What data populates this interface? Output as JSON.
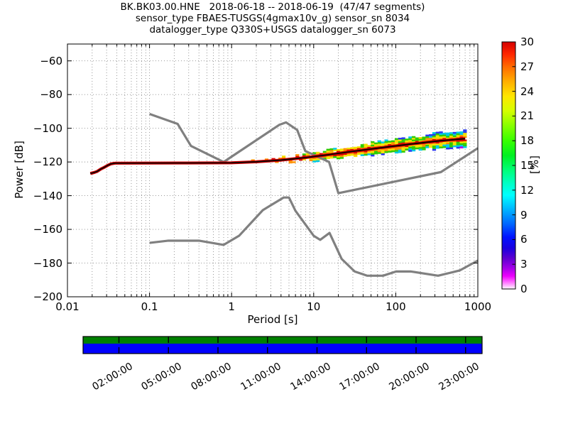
{
  "figure": {
    "title_line1": "BK.BK03.00.HNE   2018-06-18 -- 2018-06-19  (47/47 segments)",
    "title_line2": "sensor_type FBAES-TUSGS(4gmax10v_g) sensor_sn 8034",
    "title_line3": "datalogger_type Q330S+USGS datalogger_sn 6073"
  },
  "chart_data": {
    "type": "heatmap",
    "title": "BK.BK03.00.HNE   2018-06-18 -- 2018-06-19  (47/47 segments)",
    "xlabel": "Period [s]",
    "ylabel": "Power [dB]",
    "xscale": "log",
    "xlim": [
      0.01,
      1000
    ],
    "ylim": [
      -200,
      -50
    ],
    "grid": "dotted, major and minor x, major y",
    "xticks": {
      "values": [
        0.01,
        0.1,
        1,
        10,
        100,
        1000
      ],
      "labels": [
        "0.01",
        "0.1",
        "1",
        "10",
        "100",
        "1000"
      ]
    },
    "yticks": {
      "values": [
        -60,
        -80,
        -100,
        -120,
        -140,
        -160,
        -180,
        -200
      ],
      "labels": [
        "−60",
        "−80",
        "−100",
        "−120",
        "−140",
        "−160",
        "−180",
        "−200"
      ]
    },
    "colorbar": {
      "label": "[%]",
      "range": [
        0,
        30
      ],
      "tick_values": [
        0,
        3,
        6,
        9,
        12,
        15,
        18,
        21,
        24,
        27,
        30
      ],
      "tick_labels": [
        "0",
        "3",
        "6",
        "9",
        "12",
        "15",
        "18",
        "21",
        "24",
        "27",
        "30"
      ],
      "gradient_top_to_bottom": [
        [
          0.0,
          "#d40000"
        ],
        [
          0.05,
          "#ff2600"
        ],
        [
          0.1,
          "#ff6a00"
        ],
        [
          0.16,
          "#ffae00"
        ],
        [
          0.22,
          "#ffe600"
        ],
        [
          0.28,
          "#d4ff00"
        ],
        [
          0.34,
          "#86ff00"
        ],
        [
          0.4,
          "#38ff00"
        ],
        [
          0.46,
          "#00f022"
        ],
        [
          0.52,
          "#00ff7a"
        ],
        [
          0.575,
          "#00ffc8"
        ],
        [
          0.62,
          "#00ffff"
        ],
        [
          0.68,
          "#00b2ff"
        ],
        [
          0.74,
          "#0062ff"
        ],
        [
          0.79,
          "#0012ff"
        ],
        [
          0.835,
          "#1a00e0"
        ],
        [
          0.875,
          "#5c00d0"
        ],
        [
          0.915,
          "#a200e8"
        ],
        [
          0.948,
          "#ee00ff"
        ],
        [
          0.972,
          "#ff6cff"
        ],
        [
          0.99,
          "#ffc6ff"
        ],
        [
          1.0,
          "#ffffff"
        ]
      ]
    },
    "noise_models": {
      "color": "#808080",
      "nhnm": [
        [
          0.1,
          -91.5
        ],
        [
          0.22,
          -97.4
        ],
        [
          0.32,
          -110.5
        ],
        [
          0.8,
          -120.0
        ],
        [
          3.8,
          -98.0
        ],
        [
          4.6,
          -96.5
        ],
        [
          6.3,
          -101.0
        ],
        [
          7.9,
          -113.5
        ],
        [
          15.4,
          -120.0
        ],
        [
          20.0,
          -138.5
        ],
        [
          354.8,
          -126.0
        ],
        [
          1000,
          -111.8
        ]
      ],
      "nlnm": [
        [
          0.1,
          -168.0
        ],
        [
          0.17,
          -166.7
        ],
        [
          0.4,
          -166.7
        ],
        [
          0.8,
          -169.2
        ],
        [
          1.24,
          -163.7
        ],
        [
          2.4,
          -148.6
        ],
        [
          4.3,
          -141.1
        ],
        [
          5.0,
          -141.1
        ],
        [
          6.0,
          -149.0
        ],
        [
          10.0,
          -163.8
        ],
        [
          12.0,
          -166.2
        ],
        [
          15.6,
          -162.1
        ],
        [
          21.9,
          -177.5
        ],
        [
          31.6,
          -185.0
        ],
        [
          45.0,
          -187.5
        ],
        [
          70.0,
          -187.5
        ],
        [
          101.0,
          -185.0
        ],
        [
          154.0,
          -185.0
        ],
        [
          328.0,
          -187.5
        ],
        [
          600.0,
          -184.4
        ],
        [
          1000,
          -178.5
        ]
      ]
    },
    "psd_mode_line": {
      "color_outer": "#cc0000",
      "color_center": "#000000",
      "points": [
        [
          0.019,
          -126.8
        ],
        [
          0.021,
          -126.3
        ],
        [
          0.023,
          -125.6
        ],
        [
          0.0255,
          -124.2
        ],
        [
          0.028,
          -123.2
        ],
        [
          0.031,
          -122.0
        ],
        [
          0.034,
          -121.1
        ],
        [
          0.038,
          -120.7
        ],
        [
          0.3,
          -120.6
        ],
        [
          1.0,
          -120.5
        ],
        [
          2.0,
          -119.9
        ],
        [
          4.0,
          -118.9
        ],
        [
          8.0,
          -117.4
        ],
        [
          15.0,
          -115.7
        ],
        [
          30.0,
          -113.7
        ],
        [
          70.0,
          -111.4
        ],
        [
          150.0,
          -109.4
        ],
        [
          350.0,
          -107.4
        ],
        [
          700.0,
          -106.2
        ]
      ]
    },
    "histogram_spread": {
      "max_halfwidth_db": 4.3,
      "ring_colors": [
        "#dd0000",
        "#ff9100",
        "#f2e200",
        "#2ecc00",
        "#00c8e6",
        "#2837f0",
        "#bc00ee",
        "#ff5ef5"
      ]
    },
    "coverage_bar": {
      "top_color": "#008000",
      "bottom_color": "#0000ff",
      "tick_hours": [
        2,
        5,
        8,
        11,
        14,
        17,
        20,
        23
      ],
      "tick_labels": [
        "02:00:00",
        "05:00:00",
        "08:00:00",
        "11:00:00",
        "14:00:00",
        "17:00:00",
        "20:00:00",
        "23:00:00"
      ]
    }
  }
}
